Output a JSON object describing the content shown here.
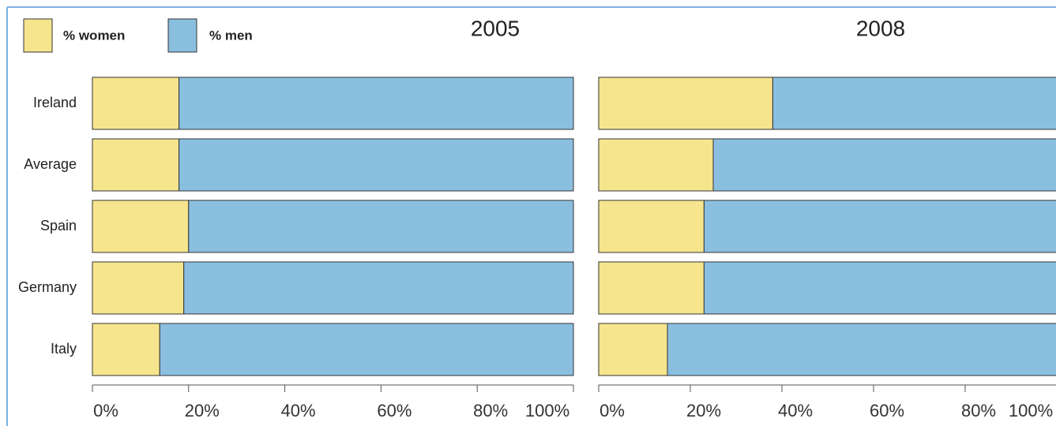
{
  "chart_data": [
    {
      "type": "bar",
      "stacked": true,
      "orientation": "horizontal",
      "title": "2005",
      "categories": [
        "Ireland",
        "Average",
        "Spain",
        "Germany",
        "Italy"
      ],
      "series": [
        {
          "name": "% women",
          "color": "#f6e58d",
          "values": [
            18,
            18,
            20,
            19,
            14
          ]
        },
        {
          "name": "% men",
          "color": "#8bbfe0",
          "values": [
            82,
            82,
            80,
            81,
            86
          ]
        }
      ],
      "xlim": [
        0,
        100
      ],
      "xticks": [
        {
          "value": 0,
          "label": "0%"
        },
        {
          "value": 20,
          "label": "20%"
        },
        {
          "value": 40,
          "label": "40%"
        },
        {
          "value": 60,
          "label": "60%"
        },
        {
          "value": 80,
          "label": "80%"
        },
        {
          "value": 100,
          "label": "100%"
        }
      ],
      "legend": "top-left"
    },
    {
      "type": "bar",
      "stacked": true,
      "orientation": "horizontal",
      "title": "2008",
      "series": [
        {
          "color": "#f6e58d",
          "values": [
            38,
            25,
            23,
            23,
            15
          ]
        },
        {
          "color": "#8bbfe0",
          "values": [
            62,
            75,
            77,
            77,
            85
          ]
        }
      ],
      "xlim": [
        0,
        100
      ],
      "xticks": [
        {
          "value": 0,
          "label": "0%"
        },
        {
          "value": 20,
          "label": "20%"
        },
        {
          "value": 40,
          "label": "40%"
        },
        {
          "value": 60,
          "label": "60%"
        },
        {
          "value": 80,
          "label": "80%"
        },
        {
          "value": 100,
          "label": "100%"
        }
      ]
    }
  ]
}
